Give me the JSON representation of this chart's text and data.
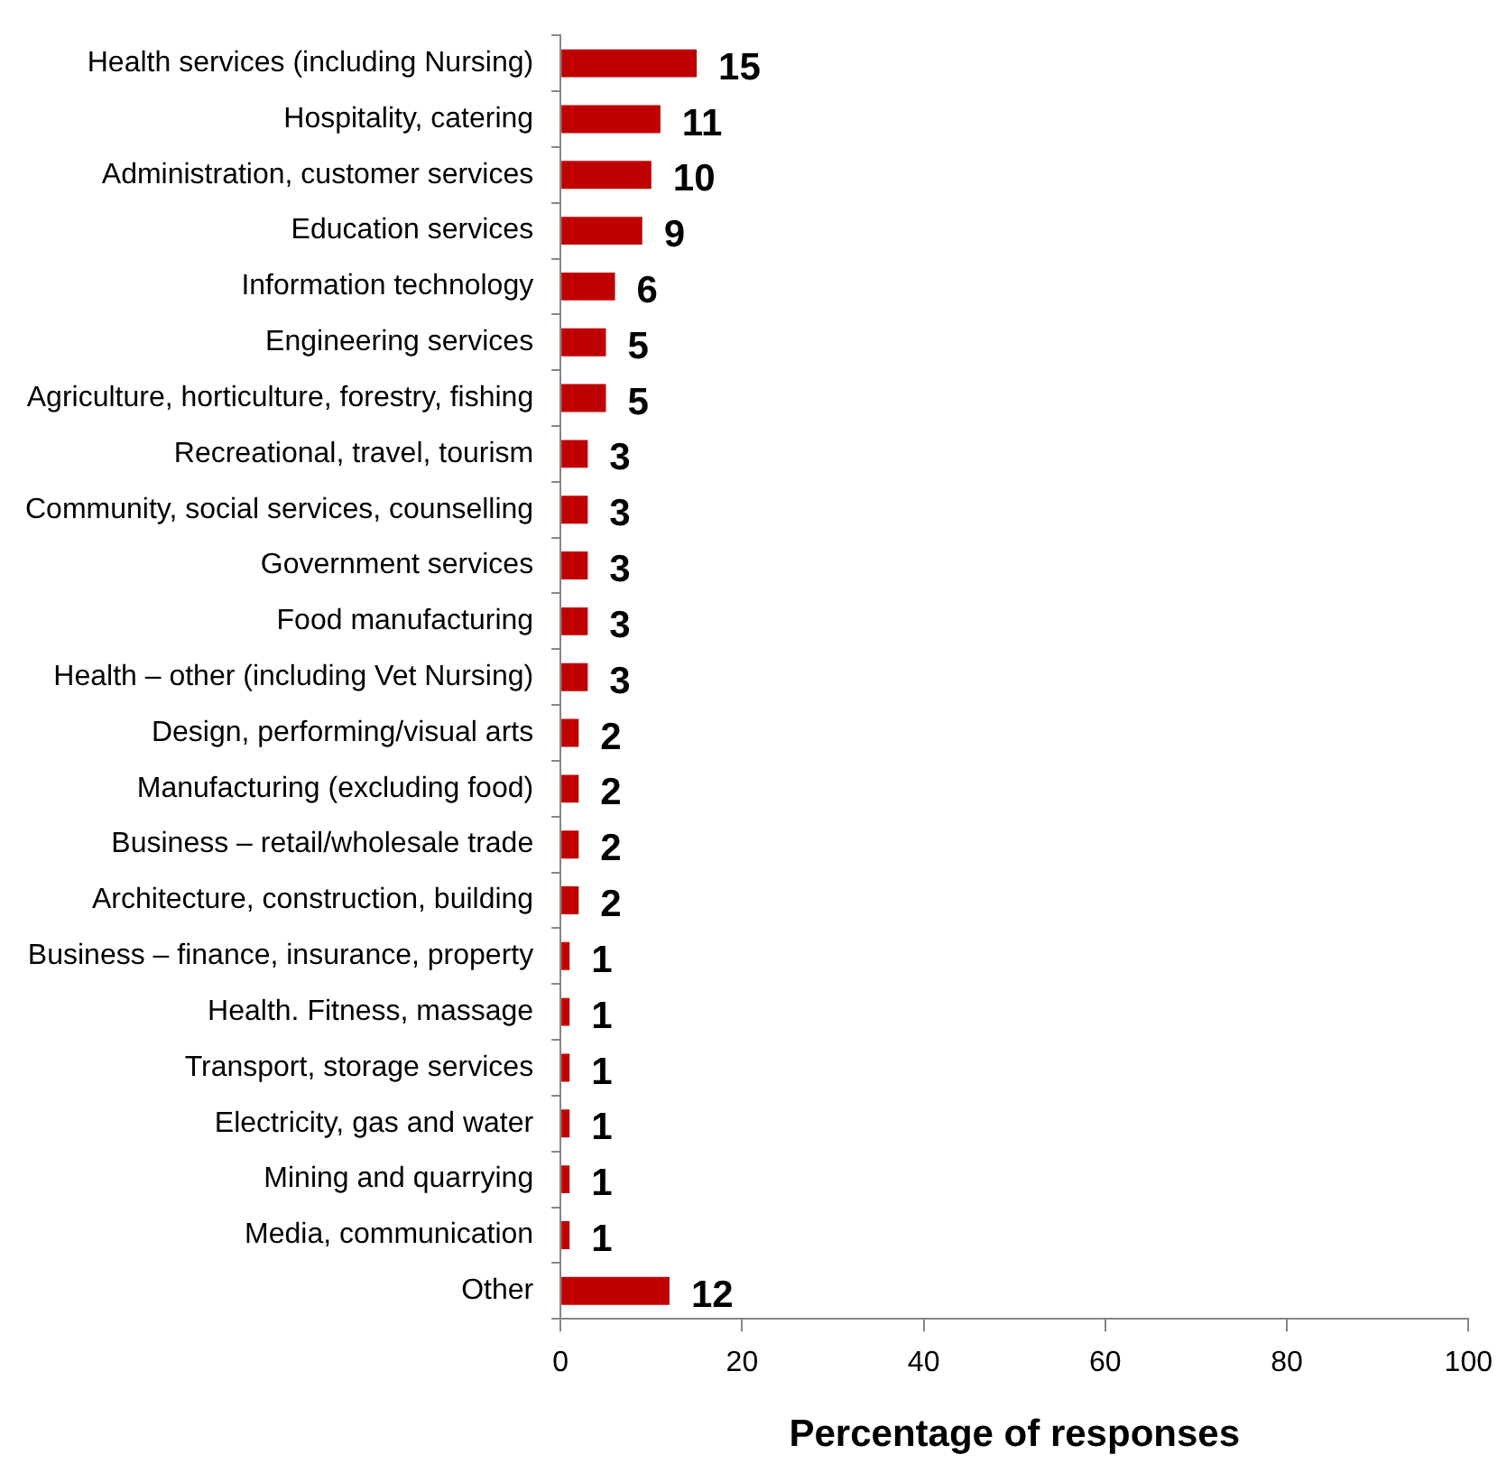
{
  "chart_data": {
    "type": "bar",
    "orientation": "horizontal",
    "xlabel": "Percentage of responses",
    "categories": [
      "Health services (including Nursing)",
      "Hospitality, catering",
      "Administration, customer services",
      "Education services",
      "Information technology",
      "Engineering services",
      "Agriculture, horticulture, forestry, fishing",
      "Recreational, travel, tourism",
      "Community, social services, counselling",
      "Government services",
      "Food manufacturing",
      "Health – other (including Vet Nursing)",
      "Design, performing/visual arts",
      "Manufacturing (excluding food)",
      "Business – retail/wholesale trade",
      "Architecture, construction, building",
      "Business – finance, insurance, property",
      "Health. Fitness, massage",
      "Transport, storage services",
      "Electricity, gas and water",
      "Mining and quarrying",
      "Media, communication",
      "Other"
    ],
    "values": [
      15,
      11,
      10,
      9,
      6,
      5,
      5,
      3,
      3,
      3,
      3,
      3,
      2,
      2,
      2,
      2,
      1,
      1,
      1,
      1,
      1,
      1,
      12
    ],
    "color": "#c00000",
    "xlim": [
      0,
      100
    ],
    "xticks": [
      0,
      20,
      40,
      60,
      80,
      100
    ],
    "grid": false,
    "legend": false,
    "data_labels": true
  }
}
